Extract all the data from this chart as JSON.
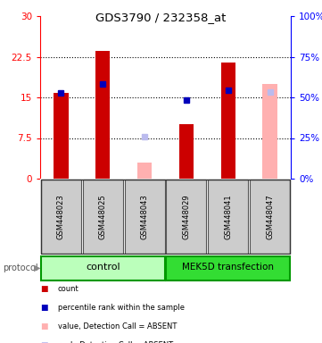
{
  "title": "GDS3790 / 232358_at",
  "samples": [
    "GSM448023",
    "GSM448025",
    "GSM448043",
    "GSM448029",
    "GSM448041",
    "GSM448047"
  ],
  "ylim_left": [
    0,
    30
  ],
  "ylim_right": [
    0,
    100
  ],
  "yticks_left": [
    0,
    7.5,
    15,
    22.5,
    30
  ],
  "yticks_right": [
    0,
    25,
    50,
    75,
    100
  ],
  "ytick_labels_left": [
    "0",
    "7.5",
    "15",
    "22.5",
    "30"
  ],
  "ytick_labels_right": [
    "0%",
    "25%",
    "50%",
    "75%",
    "100%"
  ],
  "red_bars": [
    15.8,
    23.5,
    null,
    10.0,
    21.5,
    null
  ],
  "blue_squares": [
    15.8,
    17.5,
    null,
    14.5,
    16.3,
    null
  ],
  "pink_bars": [
    null,
    null,
    3.0,
    null,
    null,
    17.5
  ],
  "lightblue_squares": [
    null,
    null,
    7.8,
    null,
    null,
    16.0
  ],
  "red_color": "#CC0000",
  "blue_color": "#0000BB",
  "pink_color": "#FFB0B0",
  "lightblue_color": "#BBBBEE",
  "sample_bg_color": "#CCCCCC",
  "legend_items": [
    {
      "color": "#CC0000",
      "label": "count"
    },
    {
      "color": "#0000BB",
      "label": "percentile rank within the sample"
    },
    {
      "color": "#FFB0B0",
      "label": "value, Detection Call = ABSENT"
    },
    {
      "color": "#BBBBEE",
      "label": "rank, Detection Call = ABSENT"
    }
  ]
}
